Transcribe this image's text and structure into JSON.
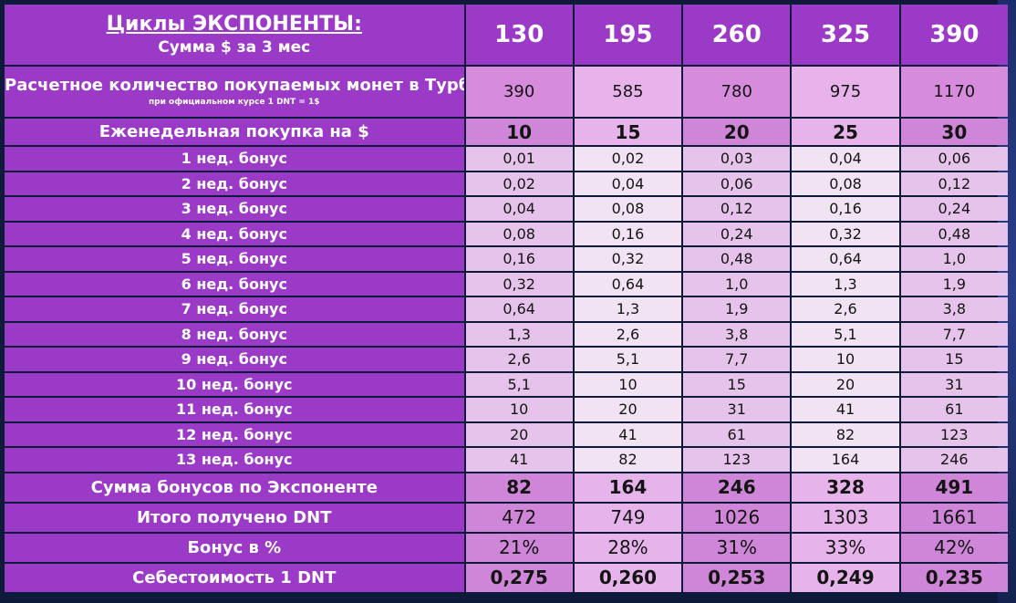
{
  "header": {
    "title": "Циклы ЭКСПОНЕНТЫ",
    "colon": ":",
    "subtitle": "Сумма $ за 3 мес",
    "columns": [
      "130",
      "195",
      "260",
      "325",
      "390"
    ]
  },
  "coins_row": {
    "label": "Расчетное количество покупаемых монет в Турбо,",
    "note": "при официальном курсе 1 DNT = 1$",
    "values": [
      "390",
      "585",
      "780",
      "975",
      "1170"
    ]
  },
  "weekly_row": {
    "label": "Еженедельная покупка на $",
    "values": [
      "10",
      "15",
      "20",
      "25",
      "30"
    ]
  },
  "bonus_rows": [
    {
      "label": "1 нед. бонус",
      "values": [
        "0,01",
        "0,02",
        "0,03",
        "0,04",
        "0,06"
      ]
    },
    {
      "label": "2 нед. бонус",
      "values": [
        "0,02",
        "0,04",
        "0,06",
        "0,08",
        "0,12"
      ]
    },
    {
      "label": "3 нед. бонус",
      "values": [
        "0,04",
        "0,08",
        "0,12",
        "0,16",
        "0,24"
      ]
    },
    {
      "label": "4 нед. бонус",
      "values": [
        "0,08",
        "0,16",
        "0,24",
        "0,32",
        "0,48"
      ]
    },
    {
      "label": "5 нед. бонус",
      "values": [
        "0,16",
        "0,32",
        "0,48",
        "0,64",
        "1,0"
      ]
    },
    {
      "label": "6 нед. бонус",
      "values": [
        "0,32",
        "0,64",
        "1,0",
        "1,3",
        "1,9"
      ]
    },
    {
      "label": "7 нед. бонус",
      "values": [
        "0,64",
        "1,3",
        "1,9",
        "2,6",
        "3,8"
      ]
    },
    {
      "label": "8 нед. бонус",
      "values": [
        "1,3",
        "2,6",
        "3,8",
        "5,1",
        "7,7"
      ]
    },
    {
      "label": "9 нед. бонус",
      "values": [
        "2,6",
        "5,1",
        "7,7",
        "10",
        "15"
      ]
    },
    {
      "label": "10 нед. бонус",
      "values": [
        "5,1",
        "10",
        "15",
        "20",
        "31"
      ]
    },
    {
      "label": "11 нед. бонус",
      "values": [
        "10",
        "20",
        "31",
        "41",
        "61"
      ]
    },
    {
      "label": "12 нед. бонус",
      "values": [
        "20",
        "41",
        "61",
        "82",
        "123"
      ]
    },
    {
      "label": "13 нед. бонус",
      "values": [
        "41",
        "82",
        "123",
        "164",
        "246"
      ]
    }
  ],
  "sum_row": {
    "label": "Сумма бонусов по Экспоненте",
    "values": [
      "82",
      "164",
      "246",
      "328",
      "491"
    ]
  },
  "total_row": {
    "label": "Итого получено DNT",
    "values": [
      "472",
      "749",
      "1026",
      "1303",
      "1661"
    ]
  },
  "pct_row": {
    "label": "Бонус в %",
    "values": [
      "21%",
      "28%",
      "31%",
      "33%",
      "42%"
    ]
  },
  "cost_row": {
    "label": "Себестоимость 1 DNT",
    "values": [
      "0,275",
      "0,260",
      "0,253",
      "0,249",
      "0,235"
    ]
  },
  "colors": {
    "header_purple": "#9b3ac6",
    "cell_light": "#f1e3f3",
    "cell_mid": "#e6c3ea",
    "cell_pink": "#d68bdc",
    "background": "#0d1a3a"
  }
}
